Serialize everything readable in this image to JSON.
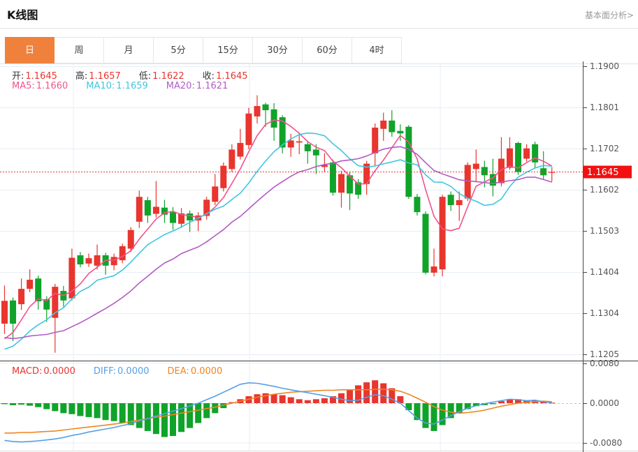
{
  "header": {
    "title": "K线图",
    "link": "基本面分析>"
  },
  "tabs": [
    {
      "label": "日",
      "active": true
    },
    {
      "label": "周",
      "active": false
    },
    {
      "label": "月",
      "active": false
    },
    {
      "label": "5分",
      "active": false
    },
    {
      "label": "15分",
      "active": false
    },
    {
      "label": "30分",
      "active": false
    },
    {
      "label": "60分",
      "active": false
    },
    {
      "label": "4时",
      "active": false
    }
  ],
  "legend_ohlc": [
    {
      "label": "开:",
      "value": "1.1645"
    },
    {
      "label": "高:",
      "value": "1.1657"
    },
    {
      "label": "低:",
      "value": "1.1622"
    },
    {
      "label": "收:",
      "value": "1.1645"
    }
  ],
  "legend_ma": [
    {
      "label": "MA5:",
      "value": "1.1660",
      "color": "#f0538c"
    },
    {
      "label": "MA10:",
      "value": "1.1659",
      "color": "#3fc6e0"
    },
    {
      "label": "MA20:",
      "value": "1.1621",
      "color": "#b25bc4"
    }
  ],
  "legend_macd": [
    {
      "label": "MACD:",
      "value": "0.0000",
      "color": "#e8352e"
    },
    {
      "label": "DIFF:",
      "value": "0.0000",
      "color": "#55a0e6"
    },
    {
      "label": "DEA:",
      "value": "0.0000",
      "color": "#f08421"
    }
  ],
  "colors": {
    "up": "#e8352e",
    "down": "#10a32a",
    "ma5": "#f0538c",
    "ma10": "#3fc6e0",
    "ma20": "#b25bc4",
    "diff": "#55a0e6",
    "dea": "#f08421",
    "tab_active_bg": "#f0813d",
    "price_tag_bg": "#f21010",
    "price_tag_text": "#ffffff",
    "dotted_line": "#ee3333",
    "zero_line": "#a8cdea",
    "grid": "#e8eef4",
    "axis_line": "#444444",
    "axis_text": "#555555",
    "ohlc_label": "#333333"
  },
  "chart_data": {
    "type": "candlestick",
    "main": {
      "title": "K线图 daily candles",
      "ylim": [
        1.1205,
        1.19
      ],
      "yticks": [
        "1.1900",
        "1.1801",
        "1.1702",
        "1.1602",
        "1.1503",
        "1.1404",
        "1.1304",
        "1.1205"
      ],
      "last_price": 1.1645,
      "last_price_label": "1.1645",
      "ma_periods": [
        5,
        10,
        20
      ],
      "ma_lead_in_closes": [
        1.134,
        1.133,
        1.1318,
        1.1305,
        1.1292,
        1.128,
        1.1268,
        1.1255,
        1.1242,
        1.123,
        1.1218,
        1.1205,
        1.1195,
        1.1188,
        1.1185,
        1.119,
        1.12,
        1.1212,
        1.1225,
        1.124
      ],
      "candles": [
        [
          1.1279,
          1.1371,
          1.1254,
          1.1334
        ],
        [
          1.1335,
          1.1342,
          1.1237,
          1.1279
        ],
        [
          1.1326,
          1.1388,
          1.1312,
          1.1363
        ],
        [
          1.1363,
          1.141,
          1.1355,
          1.1385
        ],
        [
          1.1388,
          1.1395,
          1.1313,
          1.1333
        ],
        [
          1.1338,
          1.1345,
          1.1283,
          1.1313
        ],
        [
          1.1293,
          1.1375,
          1.1209,
          1.1368
        ],
        [
          1.1358,
          1.137,
          1.132,
          1.1335
        ],
        [
          1.134,
          1.146,
          1.1335,
          1.1438
        ],
        [
          1.1444,
          1.1452,
          1.1415,
          1.1422
        ],
        [
          1.1424,
          1.1448,
          1.1416,
          1.1437
        ],
        [
          1.1419,
          1.147,
          1.141,
          1.1444
        ],
        [
          1.1444,
          1.145,
          1.1397,
          1.1419
        ],
        [
          1.142,
          1.1448,
          1.1408,
          1.144
        ],
        [
          1.1432,
          1.1472,
          1.1425,
          1.1466
        ],
        [
          1.146,
          1.1512,
          1.1452,
          1.1505
        ],
        [
          1.1525,
          1.16,
          1.151,
          1.1585
        ],
        [
          1.1577,
          1.1585,
          1.1522,
          1.154
        ],
        [
          1.1544,
          1.1623,
          1.1535,
          1.1561
        ],
        [
          1.1559,
          1.1578,
          1.1522,
          1.1542
        ],
        [
          1.1548,
          1.156,
          1.1505,
          1.1522
        ],
        [
          1.152,
          1.1558,
          1.151,
          1.1545
        ],
        [
          1.1545,
          1.1552,
          1.15,
          1.1528
        ],
        [
          1.1528,
          1.1548,
          1.1502,
          1.154
        ],
        [
          1.1539,
          1.1585,
          1.153,
          1.1578
        ],
        [
          1.1573,
          1.164,
          1.1565,
          1.161
        ],
        [
          1.1606,
          1.1668,
          1.1598,
          1.166
        ],
        [
          1.1652,
          1.1712,
          1.1645,
          1.1699
        ],
        [
          1.1682,
          1.1749,
          1.1675,
          1.1715
        ],
        [
          1.171,
          1.18,
          1.17,
          1.1786
        ],
        [
          1.1779,
          1.183,
          1.1762,
          1.1804
        ],
        [
          1.1808,
          1.1812,
          1.1754,
          1.1794
        ],
        [
          1.1796,
          1.1811,
          1.172,
          1.1752
        ],
        [
          1.1777,
          1.1782,
          1.169,
          1.1704
        ],
        [
          1.1704,
          1.1737,
          1.1682,
          1.1721
        ],
        [
          1.1716,
          1.174,
          1.1688,
          1.1719
        ],
        [
          1.1712,
          1.172,
          1.1665,
          1.1695
        ],
        [
          1.1699,
          1.1712,
          1.164,
          1.1685
        ],
        [
          1.1657,
          1.169,
          1.1645,
          1.1662
        ],
        [
          1.1668,
          1.1675,
          1.1588,
          1.1595
        ],
        [
          1.1595,
          1.1648,
          1.1559,
          1.164
        ],
        [
          1.1637,
          1.1645,
          1.1553,
          1.1593
        ],
        [
          1.162,
          1.1628,
          1.158,
          1.159
        ],
        [
          1.1616,
          1.1672,
          1.159,
          1.1665
        ],
        [
          1.169,
          1.1762,
          1.166,
          1.1752
        ],
        [
          1.1749,
          1.1788,
          1.172,
          1.1769
        ],
        [
          1.1769,
          1.1794,
          1.173,
          1.1741
        ],
        [
          1.1744,
          1.176,
          1.172,
          1.1738
        ],
        [
          1.1754,
          1.1758,
          1.158,
          1.1585
        ],
        [
          1.1585,
          1.1592,
          1.154,
          1.1548
        ],
        [
          1.1544,
          1.155,
          1.1398,
          1.1402
        ],
        [
          1.1402,
          1.146,
          1.1393,
          1.1417
        ],
        [
          1.141,
          1.159,
          1.1393,
          1.1585
        ],
        [
          1.159,
          1.1598,
          1.1551,
          1.1565
        ],
        [
          1.1565,
          1.1598,
          1.1527,
          1.1577
        ],
        [
          1.1581,
          1.1668,
          1.1575,
          1.1662
        ],
        [
          1.1652,
          1.1699,
          1.162,
          1.1665
        ],
        [
          1.1657,
          1.1672,
          1.1608,
          1.1637
        ],
        [
          1.164,
          1.1677,
          1.1586,
          1.1612
        ],
        [
          1.1618,
          1.1729,
          1.161,
          1.1677
        ],
        [
          1.1655,
          1.1729,
          1.165,
          1.1702
        ],
        [
          1.1715,
          1.1718,
          1.1638,
          1.1645
        ],
        [
          1.1677,
          1.1712,
          1.167,
          1.1702
        ],
        [
          1.1712,
          1.1718,
          1.1655,
          1.1668
        ],
        [
          1.1654,
          1.1695,
          1.1628,
          1.1637
        ],
        [
          1.1645,
          1.1657,
          1.1622,
          1.1645
        ]
      ]
    },
    "macd": {
      "title": "MACD(12,26,9)",
      "ylim": [
        -0.008,
        0.008
      ],
      "yticks": [
        "0.0080",
        "0.0000",
        "-0.0080"
      ],
      "value_scale": 0.0001,
      "hist": [
        -2,
        -4,
        -3,
        -5,
        -8,
        -12,
        -16,
        -20,
        -22,
        -26,
        -28,
        -30,
        -34,
        -36,
        -40,
        -44,
        -50,
        -56,
        -62,
        -68,
        -66,
        -58,
        -50,
        -40,
        -30,
        -20,
        -10,
        2,
        8,
        14,
        18,
        20,
        18,
        16,
        12,
        8,
        6,
        8,
        10,
        14,
        20,
        28,
        36,
        42,
        46,
        40,
        30,
        14,
        -14,
        -34,
        -50,
        -56,
        -44,
        -30,
        -20,
        -12,
        -6,
        -4,
        -2,
        4,
        7,
        8,
        5,
        6,
        3,
        1
      ],
      "diff": [
        -75,
        -77,
        -78,
        -77,
        -76,
        -74,
        -72,
        -69,
        -65,
        -62,
        -58,
        -55,
        -52,
        -49,
        -45,
        -41,
        -36,
        -31,
        -26,
        -21,
        -16,
        -11,
        -6,
        0,
        7,
        14,
        22,
        30,
        38,
        41,
        40,
        37,
        34,
        30,
        27,
        24,
        21,
        18,
        15,
        12,
        8,
        5,
        6,
        12,
        17,
        15,
        8,
        0,
        -15,
        -30,
        -40,
        -42,
        -34,
        -25,
        -17,
        -10,
        -5,
        -1,
        2,
        5,
        8,
        7,
        5,
        6,
        3,
        1
      ],
      "dea": [
        -60,
        -60,
        -59,
        -59,
        -58,
        -57,
        -56,
        -54,
        -52,
        -50,
        -48,
        -46,
        -44,
        -42,
        -40,
        -37,
        -34,
        -31,
        -28,
        -26,
        -23,
        -20,
        -17,
        -14,
        -11,
        -8,
        -4,
        0,
        4,
        8,
        12,
        15,
        18,
        20,
        22,
        23,
        24,
        25,
        26,
        26,
        27,
        27,
        27,
        27,
        28,
        28,
        27,
        24,
        18,
        10,
        2,
        -7,
        -14,
        -18,
        -20,
        -19,
        -17,
        -14,
        -10,
        -6,
        -3,
        0,
        2,
        3,
        4,
        3
      ]
    }
  }
}
